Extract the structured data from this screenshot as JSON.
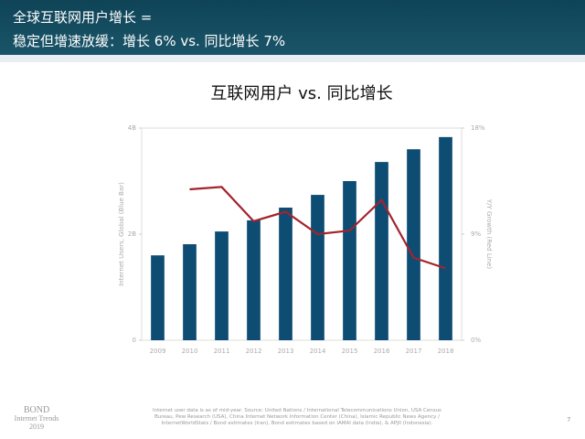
{
  "header": {
    "line1": "全球互联网用户增长 =",
    "line2": "稳定但增速放缓：增长 6% vs. 同比增长 7%"
  },
  "chart_data": {
    "type": "bar_line",
    "title": "互联网用户 vs. 同比增长",
    "categories": [
      "2009",
      "2010",
      "2011",
      "2012",
      "2013",
      "2014",
      "2015",
      "2016",
      "2017",
      "2018"
    ],
    "series": [
      {
        "name": "Internet Users, Global (Blue Bar)",
        "type": "bar",
        "color": "#0e4d73",
        "values": [
          1.6,
          1.81,
          2.05,
          2.26,
          2.5,
          2.74,
          3.0,
          3.36,
          3.6,
          3.83
        ]
      },
      {
        "name": "Y/Y Growth (Red Line)",
        "type": "line",
        "axis": "y2",
        "color": "#a3232d",
        "values": [
          null,
          12.8,
          13.0,
          10.1,
          10.9,
          9.0,
          9.3,
          11.9,
          7.0,
          6.1
        ]
      }
    ],
    "ylabel": "Internet Users, Global (Blue Bar)",
    "y2label": "Y/Y Growth (Red Line)",
    "ylim": [
      0,
      4
    ],
    "yticks": [
      0,
      {
        "value": 2,
        "label": "2B"
      },
      {
        "value": 4,
        "label": "4B"
      }
    ],
    "y2lim": [
      0,
      18
    ],
    "y2ticks": [
      {
        "value": 0,
        "label": "0%"
      },
      {
        "value": 9,
        "label": "9%"
      },
      {
        "value": 18,
        "label": "18%"
      }
    ]
  },
  "footer": {
    "brand": [
      "BOND",
      "Internet Trends",
      "2019"
    ],
    "note": "Internet user data is as of mid-year. Source: United Nations / International Telecommunications Union, USA Census Bureau, Pew Research (USA), China Internet Network Information Center (China), Islamic Republic News Agency / InternetWorldStats / Bond estimates (Iran), Bond estimates based on IAMAI data (India), & APJII (Indonesia).",
    "page": "7"
  }
}
